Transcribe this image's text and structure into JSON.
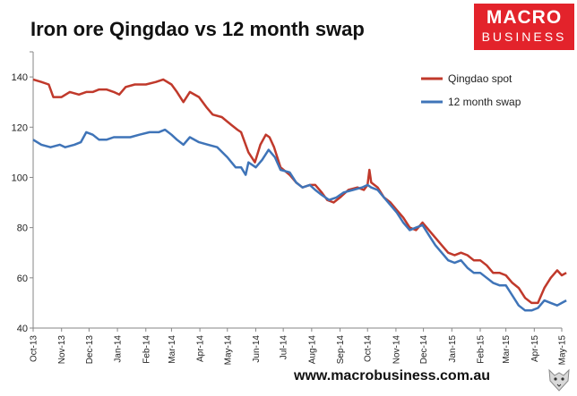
{
  "header": {
    "title": "Iron ore Qingdao vs 12 month swap",
    "logo_line1": "MACRO",
    "logo_line2": "BUSINESS"
  },
  "footer": {
    "url": "www.macrobusiness.com.au",
    "icon": "wolf-logo-icon"
  },
  "colors": {
    "spot": "#c0392b",
    "swap": "#3f74b8",
    "brand": "#e3232b"
  },
  "chart_data": {
    "type": "line",
    "x_ticks": [
      "Oct-13",
      "Nov-13",
      "Dec-13",
      "Jan-14",
      "Feb-14",
      "Mar-14",
      "Apr-14",
      "May-14",
      "Jun-14",
      "Jul-14",
      "Aug-14",
      "Sep-14",
      "Oct-14",
      "Nov-14",
      "Dec-14",
      "Jan-15",
      "Feb-15",
      "Mar-15",
      "Apr-15",
      "May-15"
    ],
    "xlim": [
      "2013-10-01",
      "2015-05-01"
    ],
    "y_ticks": [
      40,
      60,
      80,
      100,
      120,
      140
    ],
    "ylim": [
      40,
      150
    ],
    "grid": false,
    "legend_position": "top-right",
    "series": [
      {
        "name": "Qingdao spot",
        "points": [
          [
            "2013-10-01",
            139
          ],
          [
            "2013-10-10",
            138
          ],
          [
            "2013-10-18",
            137
          ],
          [
            "2013-10-23",
            132
          ],
          [
            "2013-11-01",
            132
          ],
          [
            "2013-11-10",
            134
          ],
          [
            "2013-11-20",
            133
          ],
          [
            "2013-11-28",
            134
          ],
          [
            "2013-12-05",
            134
          ],
          [
            "2013-12-12",
            135
          ],
          [
            "2013-12-20",
            135
          ],
          [
            "2013-12-28",
            134
          ],
          [
            "2014-01-03",
            133
          ],
          [
            "2014-01-10",
            136
          ],
          [
            "2014-01-20",
            137
          ],
          [
            "2014-02-01",
            137
          ],
          [
            "2014-02-12",
            138
          ],
          [
            "2014-02-20",
            139
          ],
          [
            "2014-03-01",
            137
          ],
          [
            "2014-03-07",
            134
          ],
          [
            "2014-03-14",
            130
          ],
          [
            "2014-03-21",
            134
          ],
          [
            "2014-03-31",
            132
          ],
          [
            "2014-04-08",
            128
          ],
          [
            "2014-04-15",
            125
          ],
          [
            "2014-04-25",
            124
          ],
          [
            "2014-05-05",
            121
          ],
          [
            "2014-05-12",
            119
          ],
          [
            "2014-05-16",
            118
          ],
          [
            "2014-05-21",
            113
          ],
          [
            "2014-05-24",
            110
          ],
          [
            "2014-05-31",
            106
          ],
          [
            "2014-06-06",
            113
          ],
          [
            "2014-06-12",
            117
          ],
          [
            "2014-06-16",
            116
          ],
          [
            "2014-06-21",
            112
          ],
          [
            "2014-06-28",
            104
          ],
          [
            "2014-07-08",
            101
          ],
          [
            "2014-07-15",
            98
          ],
          [
            "2014-07-22",
            96
          ],
          [
            "2014-07-30",
            97
          ],
          [
            "2014-08-05",
            97
          ],
          [
            "2014-08-12",
            94
          ],
          [
            "2014-08-18",
            91
          ],
          [
            "2014-08-25",
            90
          ],
          [
            "2014-09-01",
            92
          ],
          [
            "2014-09-10",
            95
          ],
          [
            "2014-09-20",
            96
          ],
          [
            "2014-09-27",
            95
          ],
          [
            "2014-10-01",
            97
          ],
          [
            "2014-10-03",
            103
          ],
          [
            "2014-10-05",
            98
          ],
          [
            "2014-10-12",
            96
          ],
          [
            "2014-10-19",
            92
          ],
          [
            "2014-10-26",
            90
          ],
          [
            "2014-11-02",
            87
          ],
          [
            "2014-11-09",
            84
          ],
          [
            "2014-11-16",
            80
          ],
          [
            "2014-11-23",
            79
          ],
          [
            "2014-11-30",
            82
          ],
          [
            "2014-12-07",
            79
          ],
          [
            "2014-12-14",
            76
          ],
          [
            "2014-12-21",
            73
          ],
          [
            "2014-12-28",
            70
          ],
          [
            "2015-01-04",
            69
          ],
          [
            "2015-01-11",
            70
          ],
          [
            "2015-01-18",
            69
          ],
          [
            "2015-01-25",
            67
          ],
          [
            "2015-02-01",
            67
          ],
          [
            "2015-02-08",
            65
          ],
          [
            "2015-02-15",
            62
          ],
          [
            "2015-02-22",
            62
          ],
          [
            "2015-03-01",
            61
          ],
          [
            "2015-03-08",
            58
          ],
          [
            "2015-03-15",
            56
          ],
          [
            "2015-03-22",
            52
          ],
          [
            "2015-03-29",
            50
          ],
          [
            "2015-04-05",
            50
          ],
          [
            "2015-04-12",
            56
          ],
          [
            "2015-04-19",
            60
          ],
          [
            "2015-04-26",
            63
          ],
          [
            "2015-05-01",
            61
          ],
          [
            "2015-05-06",
            62
          ]
        ]
      },
      {
        "name": "12 month swap",
        "points": [
          [
            "2013-10-01",
            115
          ],
          [
            "2013-10-10",
            113
          ],
          [
            "2013-10-20",
            112
          ],
          [
            "2013-10-30",
            113
          ],
          [
            "2013-11-05",
            112
          ],
          [
            "2013-11-15",
            113
          ],
          [
            "2013-11-22",
            114
          ],
          [
            "2013-11-28",
            118
          ],
          [
            "2013-12-05",
            117
          ],
          [
            "2013-12-12",
            115
          ],
          [
            "2013-12-20",
            115
          ],
          [
            "2013-12-28",
            116
          ],
          [
            "2014-01-05",
            116
          ],
          [
            "2014-01-15",
            116
          ],
          [
            "2014-01-25",
            117
          ],
          [
            "2014-02-05",
            118
          ],
          [
            "2014-02-15",
            118
          ],
          [
            "2014-02-22",
            119
          ],
          [
            "2014-03-01",
            117
          ],
          [
            "2014-03-07",
            115
          ],
          [
            "2014-03-14",
            113
          ],
          [
            "2014-03-21",
            116
          ],
          [
            "2014-03-31",
            114
          ],
          [
            "2014-04-10",
            113
          ],
          [
            "2014-04-20",
            112
          ],
          [
            "2014-05-01",
            108
          ],
          [
            "2014-05-10",
            104
          ],
          [
            "2014-05-16",
            104
          ],
          [
            "2014-05-21",
            101
          ],
          [
            "2014-05-24",
            106
          ],
          [
            "2014-06-01",
            104
          ],
          [
            "2014-06-08",
            107
          ],
          [
            "2014-06-15",
            111
          ],
          [
            "2014-06-22",
            108
          ],
          [
            "2014-06-28",
            103
          ],
          [
            "2014-07-08",
            102
          ],
          [
            "2014-07-15",
            98
          ],
          [
            "2014-07-22",
            96
          ],
          [
            "2014-07-30",
            97
          ],
          [
            "2014-08-05",
            95
          ],
          [
            "2014-08-12",
            93
          ],
          [
            "2014-08-20",
            91
          ],
          [
            "2014-08-28",
            92
          ],
          [
            "2014-09-05",
            94
          ],
          [
            "2014-09-15",
            95
          ],
          [
            "2014-09-25",
            96
          ],
          [
            "2014-10-01",
            97
          ],
          [
            "2014-10-05",
            96
          ],
          [
            "2014-10-12",
            95
          ],
          [
            "2014-10-19",
            92
          ],
          [
            "2014-10-26",
            89
          ],
          [
            "2014-11-02",
            86
          ],
          [
            "2014-11-09",
            82
          ],
          [
            "2014-11-16",
            79
          ],
          [
            "2014-11-23",
            80
          ],
          [
            "2014-11-30",
            81
          ],
          [
            "2014-12-07",
            77
          ],
          [
            "2014-12-14",
            73
          ],
          [
            "2014-12-21",
            70
          ],
          [
            "2014-12-28",
            67
          ],
          [
            "2015-01-04",
            66
          ],
          [
            "2015-01-11",
            67
          ],
          [
            "2015-01-18",
            64
          ],
          [
            "2015-01-25",
            62
          ],
          [
            "2015-02-01",
            62
          ],
          [
            "2015-02-08",
            60
          ],
          [
            "2015-02-15",
            58
          ],
          [
            "2015-02-22",
            57
          ],
          [
            "2015-03-01",
            57
          ],
          [
            "2015-03-08",
            53
          ],
          [
            "2015-03-15",
            49
          ],
          [
            "2015-03-22",
            47
          ],
          [
            "2015-03-29",
            47
          ],
          [
            "2015-04-05",
            48
          ],
          [
            "2015-04-12",
            51
          ],
          [
            "2015-04-19",
            50
          ],
          [
            "2015-04-26",
            49
          ],
          [
            "2015-05-01",
            50
          ],
          [
            "2015-05-06",
            51
          ]
        ]
      }
    ]
  }
}
